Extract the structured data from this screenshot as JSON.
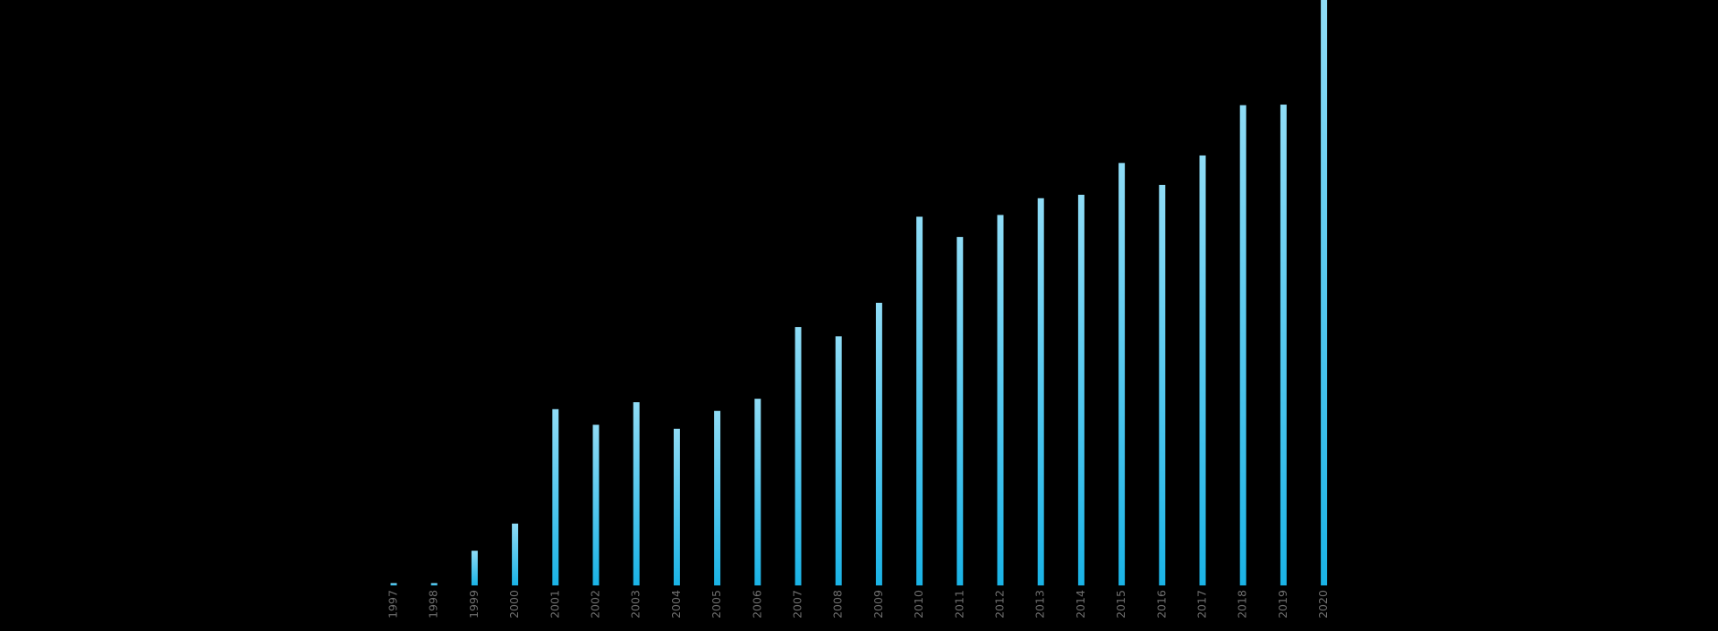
{
  "colors": {
    "background": "#000000",
    "bar_top": "#8fdcf6",
    "bar_bottom": "#1ab3e6",
    "tick_label": "#6e6e6e"
  },
  "chart_data": {
    "type": "bar",
    "title": "",
    "xlabel": "",
    "ylabel": "",
    "categories": [
      "1997",
      "1998",
      "1999",
      "2000",
      "2001",
      "2002",
      "2003",
      "2004",
      "2005",
      "2006",
      "2007",
      "2008",
      "2009",
      "2010",
      "2011",
      "2012",
      "2013",
      "2014",
      "2015",
      "2016",
      "2017",
      "2018",
      "2019",
      "2020"
    ],
    "values": [
      0.4,
      0.4,
      6.0,
      10.7,
      30.5,
      27.8,
      31.7,
      27.1,
      30.2,
      32.3,
      44.7,
      43.1,
      48.9,
      63.8,
      60.3,
      64.1,
      67.0,
      67.6,
      73.1,
      69.3,
      74.4,
      83.1,
      83.2,
      101.3
    ],
    "ylim": [
      0,
      101.3
    ],
    "grid": false,
    "legend": "none"
  }
}
